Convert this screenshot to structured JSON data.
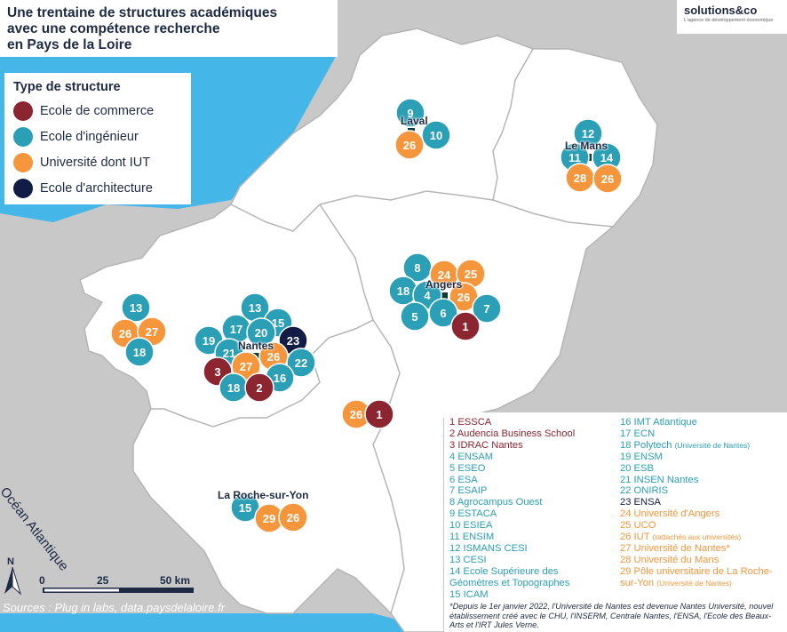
{
  "title": [
    "Une trentaine de structures académiques",
    "avec une compétence recherche",
    "en Pays de la Loire"
  ],
  "logo": {
    "main": "solutions&co",
    "sub": "L'agence de développement économique"
  },
  "legend": {
    "title": "Type de structure",
    "items": [
      {
        "label": "Ecole de commerce",
        "color": "#8b2530"
      },
      {
        "label": "Ecole d'ingénieur",
        "color": "#2a9fb5"
      },
      {
        "label": "Université dont IUT",
        "color": "#f5963c"
      },
      {
        "label": "Ecole d'architecture",
        "color": "#121c45"
      }
    ]
  },
  "ocean_label": "Océan Atlantique",
  "north_label": "N",
  "scale": {
    "zero": "0",
    "mid": "25",
    "end": "50 km"
  },
  "source": "Sources : Plug in labs, data.paysdelaloire.fr",
  "cities": [
    {
      "name": "Laval"
    },
    {
      "name": "Le Mans"
    },
    {
      "name": "Angers"
    },
    {
      "name": "Nantes"
    },
    {
      "name": "La Roche-sur-Yon"
    }
  ],
  "structures_col1": [
    {
      "text": "1 ESSCA",
      "color": "#8b2530"
    },
    {
      "text": "2 Audencia Business School",
      "color": "#8b2530"
    },
    {
      "text": "3 IDRAC Nantes",
      "color": "#8b2530"
    },
    {
      "text": "4 ENSAM",
      "color": "#2a9fb5"
    },
    {
      "text": "5 ESEO",
      "color": "#2a9fb5"
    },
    {
      "text": "6 ESA",
      "color": "#2a9fb5"
    },
    {
      "text": "7 ESAIP",
      "color": "#2a9fb5"
    },
    {
      "text": "8 Agrocampus Ouest",
      "color": "#2a9fb5"
    },
    {
      "text": "9 ESTACA",
      "color": "#2a9fb5"
    },
    {
      "text": "10 ESIEA",
      "color": "#2a9fb5"
    },
    {
      "text": "11 ENSIM",
      "color": "#2a9fb5"
    },
    {
      "text": "12 ISMANS CESI",
      "color": "#2a9fb5"
    },
    {
      "text": "13 CESI",
      "color": "#2a9fb5"
    },
    {
      "text": "14 Ecole Supérieure des",
      "color": "#2a9fb5"
    },
    {
      "text": "    Géomètres et Topographes",
      "color": "#2a9fb5"
    },
    {
      "text": "15 ICAM",
      "color": "#2a9fb5"
    }
  ],
  "structures_col2": [
    {
      "text": "16 IMT Atlantique",
      "color": "#2a9fb5",
      "small": ""
    },
    {
      "text": "17 ECN",
      "color": "#2a9fb5",
      "small": ""
    },
    {
      "text": "18 Polytech ",
      "color": "#2a9fb5",
      "small": "(Université de Nantes)"
    },
    {
      "text": "19 ENSM",
      "color": "#2a9fb5",
      "small": ""
    },
    {
      "text": "20 ESB",
      "color": "#2a9fb5",
      "small": ""
    },
    {
      "text": "21 INSEN Nantes",
      "color": "#2a9fb5",
      "small": ""
    },
    {
      "text": "22 ONIRIS",
      "color": "#2a9fb5",
      "small": ""
    },
    {
      "text": "23 ENSA",
      "color": "#121c45",
      "small": ""
    },
    {
      "text": "24 Université d'Angers",
      "color": "#f5963c",
      "small": ""
    },
    {
      "text": "25 UCO",
      "color": "#f5963c",
      "small": ""
    },
    {
      "text": "26 IUT ",
      "color": "#f5963c",
      "small": "(rattachés aux universités)"
    },
    {
      "text": "27 Université de Nantes*",
      "color": "#f5963c",
      "small": ""
    },
    {
      "text": "28 Université du Mans",
      "color": "#f5963c",
      "small": ""
    },
    {
      "text": "29 Pôle universitaire de La Roche-",
      "color": "#f5963c",
      "small": ""
    },
    {
      "text": "      sur-Yon ",
      "color": "#f5963c",
      "small": "(Université de Nantes)"
    }
  ],
  "note": "*Depuis le 1er janvier 2022, l'Université de Nantes est devenue Nantes Université, nouvel établissement créé avec le CHU, l'INSERM, Centrale Nantes, l'ENSA, l'Ecole des Beaux-Arts et l'IRT Jules Verne.",
  "markers": [
    {
      "n": "9",
      "t": "ing"
    },
    {
      "n": "10",
      "t": "ing"
    },
    {
      "n": "26",
      "t": "uni"
    },
    {
      "n": "12",
      "t": "ing"
    },
    {
      "n": "11",
      "t": "ing"
    },
    {
      "n": "14",
      "t": "ing"
    },
    {
      "n": "28",
      "t": "uni"
    },
    {
      "n": "26",
      "t": "uni"
    },
    {
      "n": "8",
      "t": "ing"
    },
    {
      "n": "24",
      "t": "uni"
    },
    {
      "n": "25",
      "t": "uni"
    },
    {
      "n": "18",
      "t": "ing"
    },
    {
      "n": "4",
      "t": "ing"
    },
    {
      "n": "26",
      "t": "uni"
    },
    {
      "n": "7",
      "t": "ing"
    },
    {
      "n": "5",
      "t": "ing"
    },
    {
      "n": "6",
      "t": "ing"
    },
    {
      "n": "1",
      "t": "com"
    },
    {
      "n": "13",
      "t": "ing"
    },
    {
      "n": "26",
      "t": "uni"
    },
    {
      "n": "27",
      "t": "uni"
    },
    {
      "n": "18",
      "t": "ing"
    },
    {
      "n": "13",
      "t": "ing"
    },
    {
      "n": "15",
      "t": "ing"
    },
    {
      "n": "17",
      "t": "ing"
    },
    {
      "n": "20",
      "t": "ing"
    },
    {
      "n": "23",
      "t": "arc"
    },
    {
      "n": "19",
      "t": "ing"
    },
    {
      "n": "21",
      "t": "ing"
    },
    {
      "n": "26",
      "t": "uni"
    },
    {
      "n": "22",
      "t": "ing"
    },
    {
      "n": "3",
      "t": "com"
    },
    {
      "n": "27",
      "t": "uni"
    },
    {
      "n": "16",
      "t": "ing"
    },
    {
      "n": "18",
      "t": "ing"
    },
    {
      "n": "2",
      "t": "com"
    },
    {
      "n": "26",
      "t": "uni"
    },
    {
      "n": "1",
      "t": "com"
    },
    {
      "n": "15",
      "t": "ing"
    },
    {
      "n": "29",
      "t": "uni"
    },
    {
      "n": "26",
      "t": "uni"
    }
  ]
}
